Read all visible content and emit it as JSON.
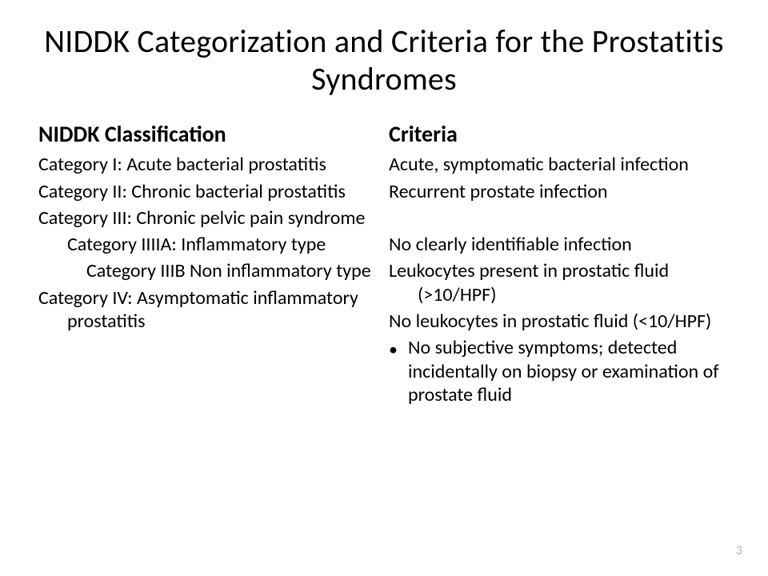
{
  "title": "NIDDK Categorization and Criteria for the Prostatitis Syndromes",
  "pageNumber": "3",
  "left": {
    "heading": "NIDDK Classification",
    "items": [
      {
        "text": "Category I: Acute bacterial prostatitis",
        "indent": 1
      },
      {
        "text": "Category II: Chronic bacterial prostatitis",
        "indent": 1
      },
      {
        "text": "Category III: Chronic pelvic pain syndrome",
        "indent": 1
      },
      {
        "text": "Category IIIIA: Inflammatory type",
        "indent": 2
      },
      {
        "text": "Category IIIB Non inflammatory type",
        "indent": 3
      },
      {
        "text": "Category IV: Asymptomatic inflammatory prostatitis",
        "indent": 1
      }
    ]
  },
  "right": {
    "heading": "Criteria",
    "items": [
      {
        "text": "Acute, symptomatic bacterial infection",
        "bullet": false
      },
      {
        "text": "Recurrent prostate infection",
        "bullet": false
      },
      {
        "text": "",
        "bullet": false
      },
      {
        "text": "No clearly identifiable infection",
        "bullet": false
      },
      {
        "text": "Leukocytes present in prostatic fluid (>10/HPF)",
        "bullet": false
      },
      {
        "text": "No leukocytes in prostatic fluid (<10/HPF)",
        "bullet": false
      },
      {
        "text": "No subjective symptoms; detected incidentally on biopsy or examination of prostate fluid",
        "bullet": true
      }
    ]
  }
}
